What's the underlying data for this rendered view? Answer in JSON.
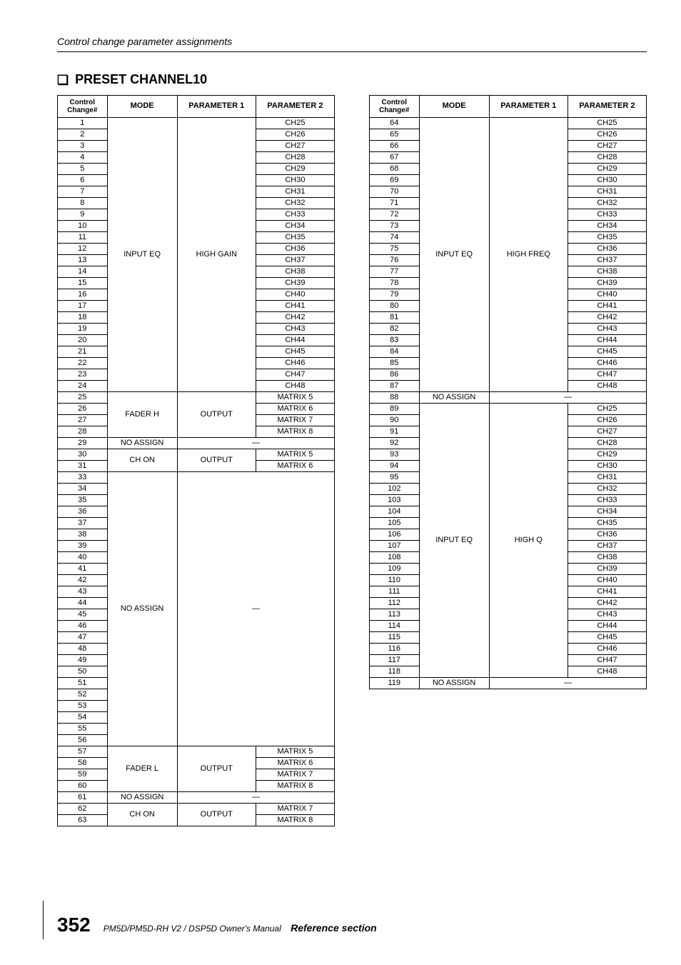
{
  "running_head": "Control change parameter assignments",
  "section_title_marker": "❏",
  "section_title": "PRESET CHANNEL10",
  "headers": {
    "cc_line1": "Control",
    "cc_line2": "Change#",
    "mode": "MODE",
    "p1": "PARAMETER 1",
    "p2": "PARAMETER 2"
  },
  "left_table": {
    "groups": [
      {
        "mode": "INPUT EQ",
        "p1": "HIGH GAIN",
        "rows": [
          {
            "cc": "1",
            "p2": "CH25"
          },
          {
            "cc": "2",
            "p2": "CH26"
          },
          {
            "cc": "3",
            "p2": "CH27"
          },
          {
            "cc": "4",
            "p2": "CH28"
          },
          {
            "cc": "5",
            "p2": "CH29"
          },
          {
            "cc": "6",
            "p2": "CH30"
          },
          {
            "cc": "7",
            "p2": "CH31"
          },
          {
            "cc": "8",
            "p2": "CH32"
          },
          {
            "cc": "9",
            "p2": "CH33"
          },
          {
            "cc": "10",
            "p2": "CH34"
          },
          {
            "cc": "11",
            "p2": "CH35"
          },
          {
            "cc": "12",
            "p2": "CH36"
          },
          {
            "cc": "13",
            "p2": "CH37"
          },
          {
            "cc": "14",
            "p2": "CH38"
          },
          {
            "cc": "15",
            "p2": "CH39"
          },
          {
            "cc": "16",
            "p2": "CH40"
          },
          {
            "cc": "17",
            "p2": "CH41"
          },
          {
            "cc": "18",
            "p2": "CH42"
          },
          {
            "cc": "19",
            "p2": "CH43"
          },
          {
            "cc": "20",
            "p2": "CH44"
          },
          {
            "cc": "21",
            "p2": "CH45"
          },
          {
            "cc": "22",
            "p2": "CH46"
          },
          {
            "cc": "23",
            "p2": "CH47"
          },
          {
            "cc": "24",
            "p2": "CH48"
          }
        ]
      },
      {
        "mode": "FADER H",
        "p1": "OUTPUT",
        "rows": [
          {
            "cc": "25",
            "p2": "MATRIX 5"
          },
          {
            "cc": "26",
            "p2": "MATRIX 6"
          },
          {
            "cc": "27",
            "p2": "MATRIX 7"
          },
          {
            "cc": "28",
            "p2": "MATRIX 8"
          }
        ]
      },
      {
        "mode": "NO ASSIGN",
        "dash": true,
        "rows": [
          {
            "cc": "29"
          }
        ]
      },
      {
        "mode": "CH ON",
        "p1": "OUTPUT",
        "rows": [
          {
            "cc": "30",
            "p2": "MATRIX 5"
          },
          {
            "cc": "31",
            "p2": "MATRIX 6"
          }
        ]
      },
      {
        "mode": "NO ASSIGN",
        "dash": true,
        "rows": [
          {
            "cc": "33"
          },
          {
            "cc": "34"
          },
          {
            "cc": "35"
          },
          {
            "cc": "36"
          },
          {
            "cc": "37"
          },
          {
            "cc": "38"
          },
          {
            "cc": "39"
          },
          {
            "cc": "40"
          },
          {
            "cc": "41"
          },
          {
            "cc": "42"
          },
          {
            "cc": "43"
          },
          {
            "cc": "44"
          },
          {
            "cc": "45"
          },
          {
            "cc": "46"
          },
          {
            "cc": "47"
          },
          {
            "cc": "48"
          },
          {
            "cc": "49"
          },
          {
            "cc": "50"
          },
          {
            "cc": "51"
          },
          {
            "cc": "52"
          },
          {
            "cc": "53"
          },
          {
            "cc": "54"
          },
          {
            "cc": "55"
          },
          {
            "cc": "56"
          }
        ]
      },
      {
        "mode": "FADER L",
        "p1": "OUTPUT",
        "rows": [
          {
            "cc": "57",
            "p2": "MATRIX 5"
          },
          {
            "cc": "58",
            "p2": "MATRIX 6"
          },
          {
            "cc": "59",
            "p2": "MATRIX 7"
          },
          {
            "cc": "60",
            "p2": "MATRIX 8"
          }
        ]
      },
      {
        "mode": "NO ASSIGN",
        "dash": true,
        "rows": [
          {
            "cc": "61"
          }
        ]
      },
      {
        "mode": "CH ON",
        "p1": "OUTPUT",
        "rows": [
          {
            "cc": "62",
            "p2": "MATRIX 7"
          },
          {
            "cc": "63",
            "p2": "MATRIX 8"
          }
        ]
      }
    ]
  },
  "right_table": {
    "groups": [
      {
        "mode": "INPUT EQ",
        "p1": "HIGH FREQ",
        "rows": [
          {
            "cc": "64",
            "p2": "CH25"
          },
          {
            "cc": "65",
            "p2": "CH26"
          },
          {
            "cc": "66",
            "p2": "CH27"
          },
          {
            "cc": "67",
            "p2": "CH28"
          },
          {
            "cc": "68",
            "p2": "CH29"
          },
          {
            "cc": "69",
            "p2": "CH30"
          },
          {
            "cc": "70",
            "p2": "CH31"
          },
          {
            "cc": "71",
            "p2": "CH32"
          },
          {
            "cc": "72",
            "p2": "CH33"
          },
          {
            "cc": "73",
            "p2": "CH34"
          },
          {
            "cc": "74",
            "p2": "CH35"
          },
          {
            "cc": "75",
            "p2": "CH36"
          },
          {
            "cc": "76",
            "p2": "CH37"
          },
          {
            "cc": "77",
            "p2": "CH38"
          },
          {
            "cc": "78",
            "p2": "CH39"
          },
          {
            "cc": "79",
            "p2": "CH40"
          },
          {
            "cc": "80",
            "p2": "CH41"
          },
          {
            "cc": "81",
            "p2": "CH42"
          },
          {
            "cc": "82",
            "p2": "CH43"
          },
          {
            "cc": "83",
            "p2": "CH44"
          },
          {
            "cc": "84",
            "p2": "CH45"
          },
          {
            "cc": "85",
            "p2": "CH46"
          },
          {
            "cc": "86",
            "p2": "CH47"
          },
          {
            "cc": "87",
            "p2": "CH48"
          }
        ]
      },
      {
        "mode": "NO ASSIGN",
        "dash": true,
        "rows": [
          {
            "cc": "88"
          }
        ]
      },
      {
        "mode": "INPUT EQ",
        "p1": "HIGH Q",
        "rows": [
          {
            "cc": "89",
            "p2": "CH25"
          },
          {
            "cc": "90",
            "p2": "CH26"
          },
          {
            "cc": "91",
            "p2": "CH27"
          },
          {
            "cc": "92",
            "p2": "CH28"
          },
          {
            "cc": "93",
            "p2": "CH29"
          },
          {
            "cc": "94",
            "p2": "CH30"
          },
          {
            "cc": "95",
            "p2": "CH31"
          },
          {
            "cc": "102",
            "p2": "CH32"
          },
          {
            "cc": "103",
            "p2": "CH33"
          },
          {
            "cc": "104",
            "p2": "CH34"
          },
          {
            "cc": "105",
            "p2": "CH35"
          },
          {
            "cc": "106",
            "p2": "CH36"
          },
          {
            "cc": "107",
            "p2": "CH37"
          },
          {
            "cc": "108",
            "p2": "CH38"
          },
          {
            "cc": "109",
            "p2": "CH39"
          },
          {
            "cc": "110",
            "p2": "CH40"
          },
          {
            "cc": "111",
            "p2": "CH41"
          },
          {
            "cc": "112",
            "p2": "CH42"
          },
          {
            "cc": "113",
            "p2": "CH43"
          },
          {
            "cc": "114",
            "p2": "CH44"
          },
          {
            "cc": "115",
            "p2": "CH45"
          },
          {
            "cc": "116",
            "p2": "CH46"
          },
          {
            "cc": "117",
            "p2": "CH47"
          },
          {
            "cc": "118",
            "p2": "CH48"
          }
        ]
      },
      {
        "mode": "NO ASSIGN",
        "dash": true,
        "rows": [
          {
            "cc": "119"
          }
        ]
      }
    ]
  },
  "footer": {
    "page_number": "352",
    "manual": "PM5D/PM5D-RH V2 / DSP5D Owner's Manual",
    "section": "Reference section"
  },
  "dash": "—"
}
